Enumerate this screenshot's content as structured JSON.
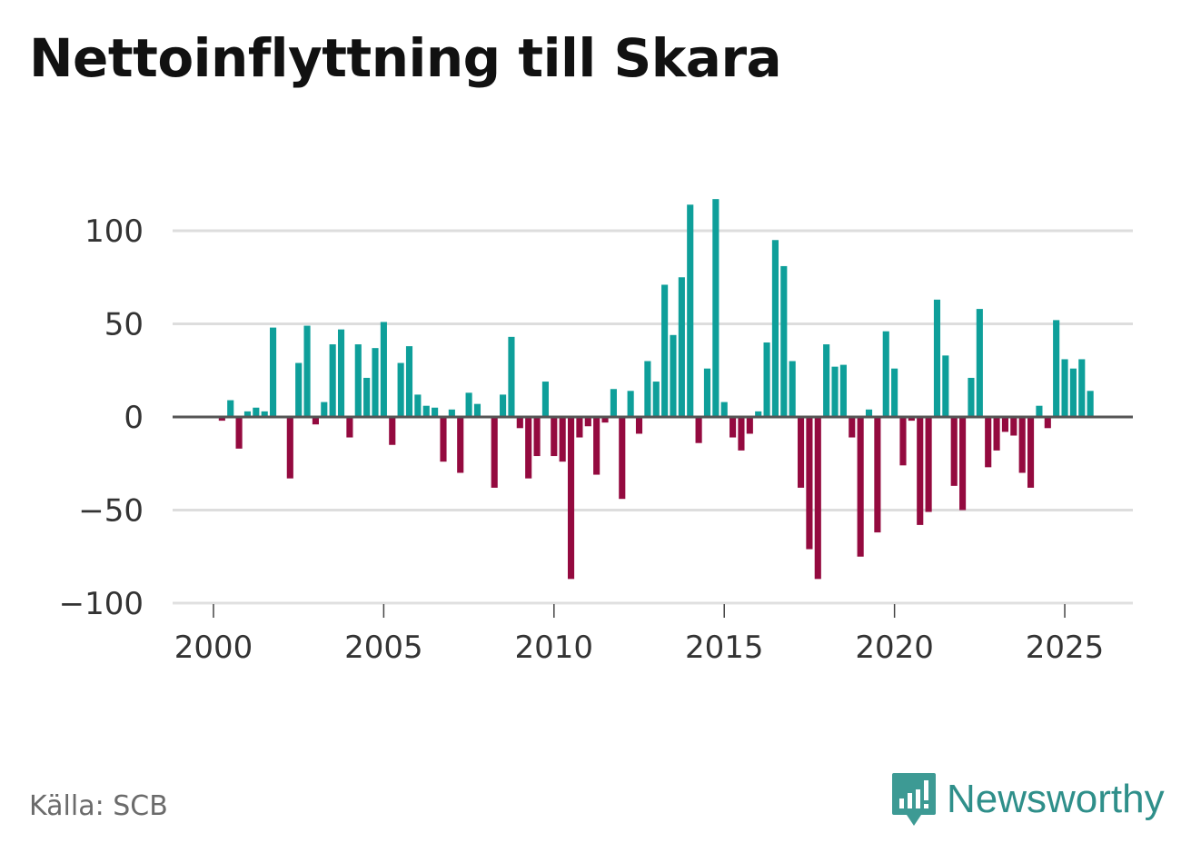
{
  "title": "Nettoinflyttning till Skara",
  "source": "Källa: SCB",
  "brand": {
    "name": "Newsworthy",
    "icon": "newsworthy-logo-icon"
  },
  "colors": {
    "positive": "#0e9f9a",
    "negative": "#940a3f",
    "grid": "#dddddd",
    "zero": "#555555",
    "text": "#333333"
  },
  "chart_data": {
    "type": "bar",
    "title": "Nettoinflyttning till Skara",
    "xlabel": "",
    "ylabel": "",
    "x_start": 2000.0,
    "x_step": 0.25,
    "xlim": [
      1998.8,
      2027.0
    ],
    "ylim": [
      -100,
      120
    ],
    "yticks": [
      100,
      50,
      0,
      -50,
      -100
    ],
    "ytick_labels": [
      "100",
      "50",
      "0",
      "−50",
      "−100"
    ],
    "xticks": [
      2000,
      2005,
      2010,
      2015,
      2020,
      2025
    ],
    "xtick_labels": [
      "2000",
      "2005",
      "2010",
      "2015",
      "2020",
      "2025"
    ],
    "values": [
      0,
      -2,
      9,
      -17,
      3,
      5,
      3,
      48,
      0,
      -33,
      29,
      49,
      -4,
      8,
      39,
      47,
      -11,
      39,
      21,
      37,
      51,
      -15,
      29,
      38,
      12,
      6,
      5,
      -24,
      4,
      -30,
      13,
      7,
      0,
      -38,
      12,
      43,
      -6,
      -33,
      -21,
      19,
      -21,
      -24,
      -87,
      -11,
      -5,
      -31,
      -3,
      15,
      -44,
      14,
      -9,
      30,
      19,
      71,
      44,
      75,
      114,
      -14,
      26,
      117,
      8,
      -11,
      -18,
      -9,
      3,
      40,
      95,
      81,
      30,
      -38,
      -71,
      -87,
      39,
      27,
      28,
      -11,
      -75,
      4,
      -62,
      46,
      26,
      -26,
      -2,
      -58,
      -51,
      63,
      33,
      -37,
      -50,
      21,
      58,
      -27,
      -18,
      -8,
      -10,
      -30,
      -38,
      6,
      -6,
      52,
      31,
      26,
      31,
      14
    ]
  }
}
